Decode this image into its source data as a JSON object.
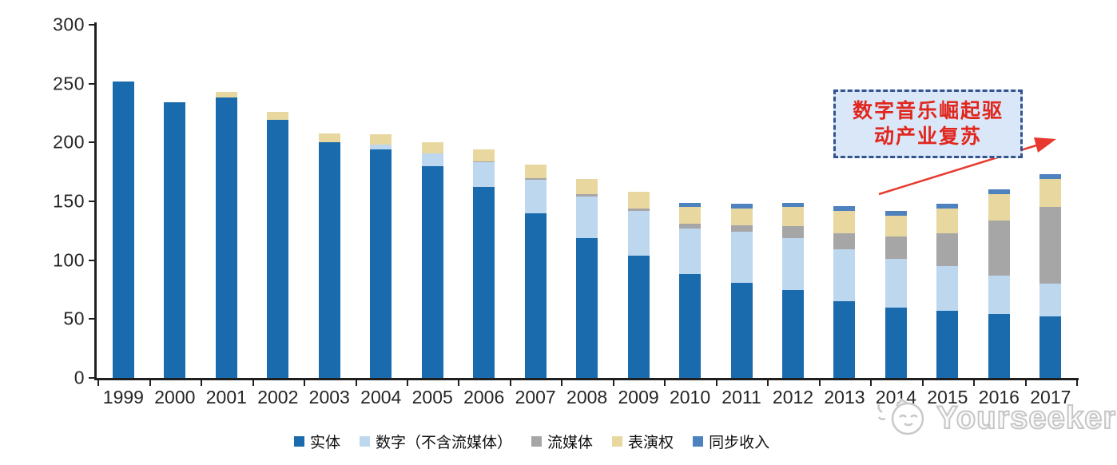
{
  "chart_data": {
    "type": "bar",
    "stacked": true,
    "title": "",
    "categories": [
      "1999",
      "2000",
      "2001",
      "2002",
      "2003",
      "2004",
      "2005",
      "2006",
      "2007",
      "2008",
      "2009",
      "2010",
      "2011",
      "2012",
      "2013",
      "2014",
      "2015",
      "2016",
      "2017"
    ],
    "series": [
      {
        "name": "实体",
        "color": "#1a6bad",
        "values": [
          252,
          234,
          238,
          219,
          200,
          194,
          180,
          162,
          140,
          119,
          104,
          88,
          81,
          75,
          65,
          60,
          57,
          54,
          52
        ]
      },
      {
        "name": "数字（不含流媒体）",
        "color": "#bdd7ee",
        "values": [
          0,
          0,
          0,
          0,
          0,
          4,
          11,
          21,
          28,
          35,
          38,
          39,
          43,
          44,
          44,
          41,
          38,
          33,
          28
        ]
      },
      {
        "name": "流媒体",
        "color": "#a6a6a6",
        "values": [
          0,
          0,
          0,
          0,
          0,
          0,
          0,
          1,
          2,
          2,
          2,
          4,
          6,
          10,
          14,
          19,
          28,
          47,
          65
        ]
      },
      {
        "name": "表演权",
        "color": "#e8d8a0",
        "values": [
          0,
          0,
          5,
          7,
          8,
          9,
          9,
          10,
          11,
          13,
          14,
          14,
          14,
          16,
          19,
          18,
          21,
          22,
          24
        ]
      },
      {
        "name": "同步收入",
        "color": "#4d82bf",
        "values": [
          0,
          0,
          0,
          0,
          0,
          0,
          0,
          0,
          0,
          0,
          0,
          4,
          4,
          4,
          4,
          4,
          4,
          4,
          4
        ]
      }
    ],
    "totals": [
      252,
      234,
      243,
      226,
      208,
      207,
      200,
      194,
      181,
      169,
      158,
      149,
      148,
      149,
      146,
      142,
      148,
      160,
      173
    ],
    "ylim": [
      0,
      300
    ],
    "yticks": [
      "0",
      "50",
      "100",
      "150",
      "200",
      "250",
      "300"
    ],
    "xlabel": "",
    "ylabel": "",
    "grid": false,
    "legend_position": "bottom"
  },
  "annotation": {
    "line1": "数字音乐崛起驱",
    "line2": "动产业复苏",
    "text_color": "#e1261d",
    "border_color": "#35538f",
    "fill_color": "#d9e7f8",
    "arrow_color": "#e8392e"
  },
  "watermark": {
    "text": "Yourseeker",
    "logo": "cat-face-icon",
    "color": "#c6c6c6"
  },
  "axis_color": "#1f1f1f"
}
